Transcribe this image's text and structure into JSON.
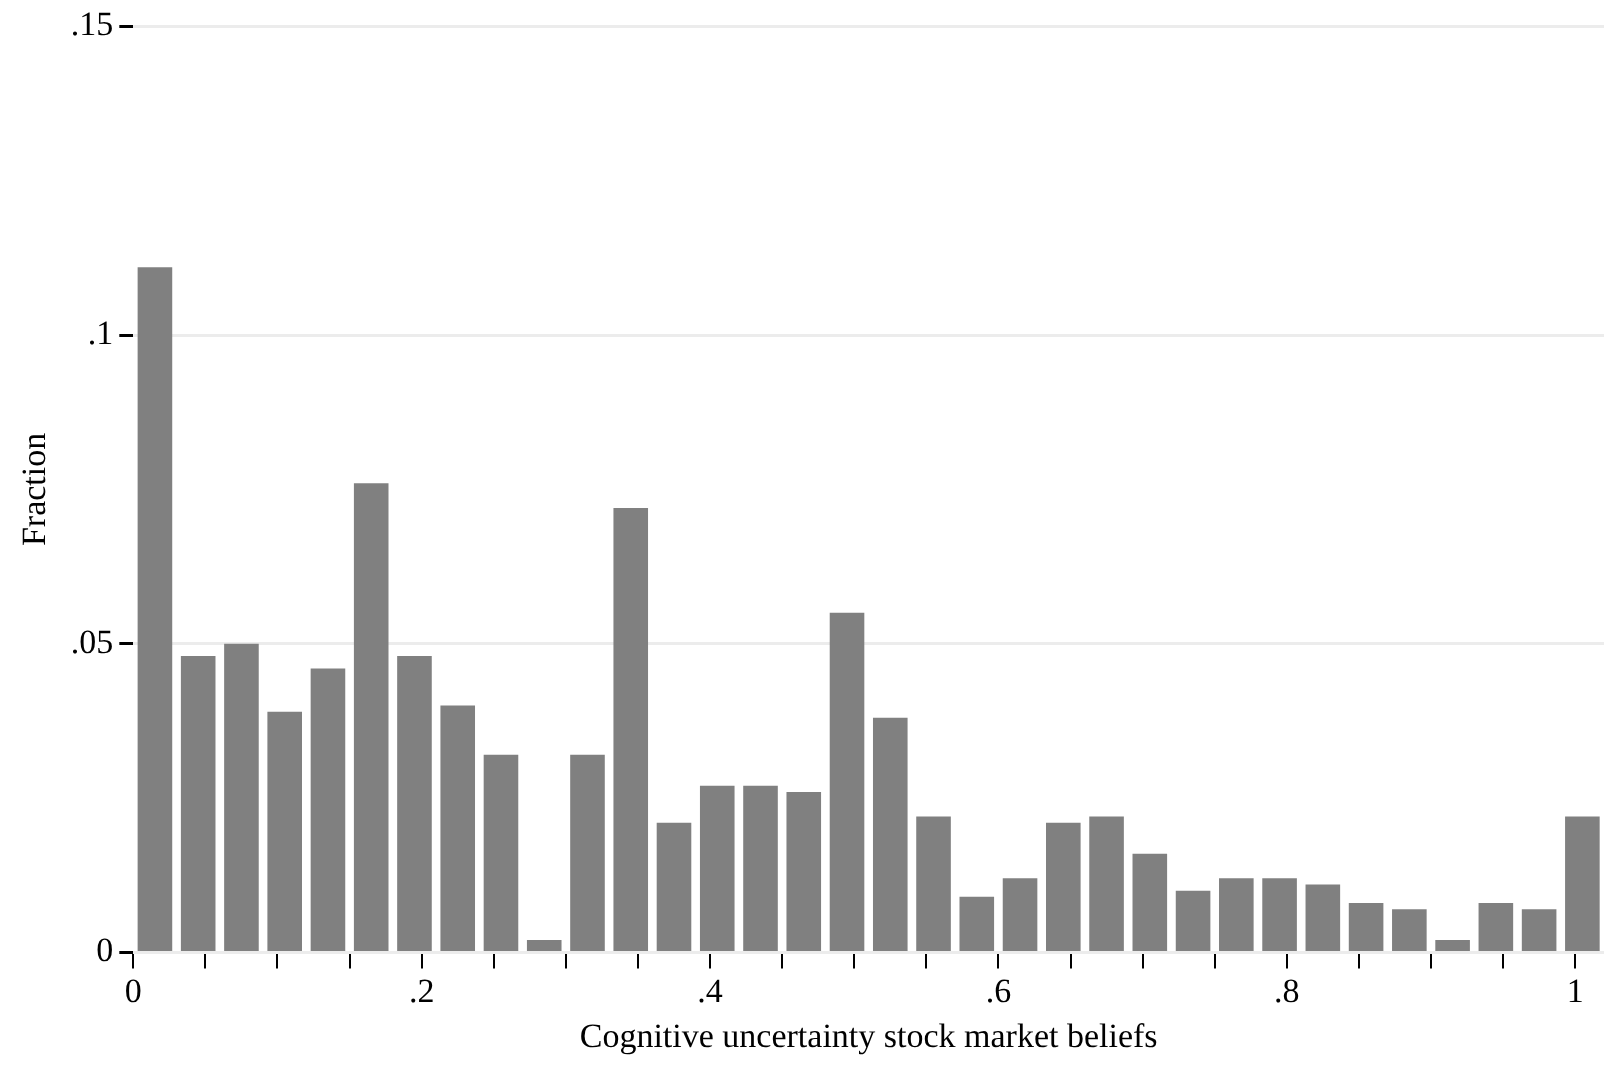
{
  "chart_data": {
    "type": "histogram",
    "xlabel": "Cognitive uncertainty stock market beliefs",
    "ylabel": "Fraction",
    "bins": [
      0,
      0.03,
      0.06,
      0.09,
      0.12,
      0.15,
      0.18,
      0.21,
      0.24,
      0.27,
      0.3,
      0.33,
      0.36,
      0.39,
      0.42,
      0.45,
      0.48,
      0.51,
      0.54,
      0.57,
      0.6,
      0.63,
      0.66,
      0.69,
      0.72,
      0.75,
      0.78,
      0.81,
      0.84,
      0.87,
      0.9,
      0.93,
      0.96,
      0.99,
      1.02
    ],
    "values": [
      0.111,
      0.048,
      0.05,
      0.039,
      0.046,
      0.076,
      0.048,
      0.04,
      0.032,
      0.002,
      0.032,
      0.072,
      0.021,
      0.027,
      0.027,
      0.026,
      0.055,
      0.038,
      0.022,
      0.009,
      0.012,
      0.021,
      0.022,
      0.016,
      0.01,
      0.012,
      0.012,
      0.011,
      0.008,
      0.007,
      0.002,
      0.008,
      0.007,
      0.022
    ],
    "color": "#808080",
    "xlim": [
      0,
      1.02
    ],
    "xticks": [
      0,
      {
        "value": 0.05,
        "label": null
      },
      {
        "value": 0.1,
        "label": null
      },
      {
        "value": 0.15,
        "label": null
      },
      {
        "value": 0.2,
        "label": ".2"
      },
      {
        "value": 0.25,
        "label": null
      },
      {
        "value": 0.3,
        "label": null
      },
      {
        "value": 0.35,
        "label": null
      },
      {
        "value": 0.4,
        "label": ".4"
      },
      {
        "value": 0.45,
        "label": null
      },
      {
        "value": 0.5,
        "label": null
      },
      {
        "value": 0.55,
        "label": null
      },
      {
        "value": 0.6,
        "label": ".6"
      },
      {
        "value": 0.65,
        "label": null
      },
      {
        "value": 0.7,
        "label": null
      },
      {
        "value": 0.75,
        "label": null
      },
      {
        "value": 0.8,
        "label": ".8"
      },
      {
        "value": 0.85,
        "label": null
      },
      {
        "value": 0.9,
        "label": null
      },
      {
        "value": 0.95,
        "label": null
      },
      {
        "value": 1,
        "label": "1"
      }
    ],
    "ylim": [
      0,
      0.15
    ],
    "yticks": [
      0,
      {
        "value": 0.05,
        "label": ".05"
      },
      {
        "value": 0.1,
        "label": ".1"
      },
      {
        "value": 0.15,
        "label": ".15"
      }
    ],
    "grid": "y",
    "legend": false
  }
}
